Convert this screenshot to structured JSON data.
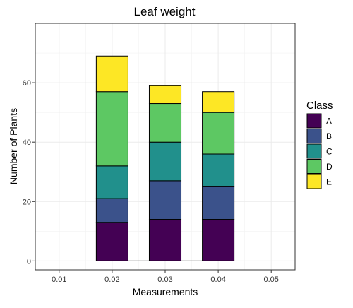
{
  "chart_data": {
    "type": "bar",
    "stacked": true,
    "title": "Leaf weight",
    "xlabel": "Measurements",
    "ylabel": "Number of Plants",
    "x": [
      0.02,
      0.03,
      0.04
    ],
    "xticks": [
      "0.01",
      "0.02",
      "0.03",
      "0.04",
      "0.05"
    ],
    "xtick_values": [
      0.01,
      0.02,
      0.03,
      0.04,
      0.05
    ],
    "yticks": [
      "0",
      "20",
      "40",
      "60"
    ],
    "ytick_values": [
      0,
      20,
      40,
      60
    ],
    "xlim": [
      0.0055,
      0.0545
    ],
    "ylim": [
      -3,
      80
    ],
    "bar_width": 0.006,
    "grid": true,
    "legend_position": "right",
    "legend_title": "Class",
    "series": [
      {
        "name": "A",
        "values": [
          13,
          14,
          14
        ],
        "color": "#440154"
      },
      {
        "name": "B",
        "values": [
          8,
          13,
          11
        ],
        "color": "#3B528B"
      },
      {
        "name": "C",
        "values": [
          11,
          13,
          11
        ],
        "color": "#21908C"
      },
      {
        "name": "D",
        "values": [
          25,
          13,
          14
        ],
        "color": "#5DC863"
      },
      {
        "name": "E",
        "values": [
          12,
          6,
          7
        ],
        "color": "#FDE725"
      }
    ]
  }
}
